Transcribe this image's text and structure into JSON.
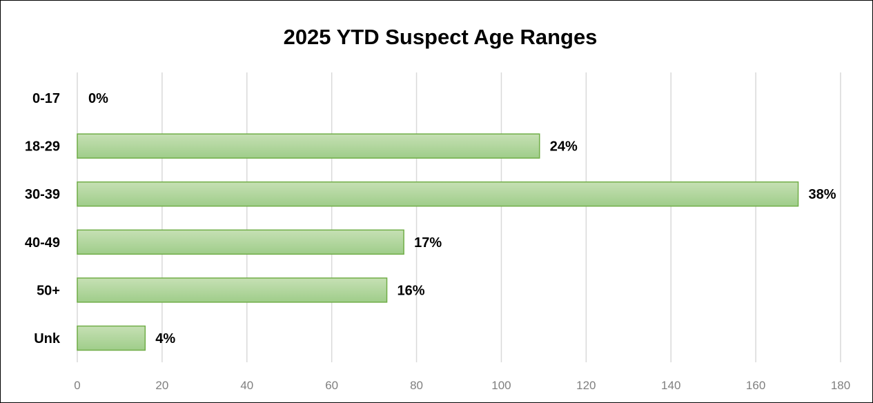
{
  "chart_data": {
    "type": "bar",
    "orientation": "horizontal",
    "title": "2025 YTD Suspect Age Ranges",
    "categories": [
      "0-17",
      "18-29",
      "30-39",
      "40-49",
      "50+",
      "Unk"
    ],
    "values": [
      0,
      109,
      170,
      77,
      73,
      16
    ],
    "data_labels": [
      "0%",
      "24%",
      "38%",
      "17%",
      "16%",
      "4%"
    ],
    "xlim": [
      0,
      180
    ],
    "x_ticks": [
      0,
      20,
      40,
      60,
      80,
      100,
      120,
      140,
      160,
      180
    ],
    "x_tick_labels": [
      "0",
      "20",
      "40",
      "60",
      "80",
      "100",
      "120",
      "140",
      "160",
      "180"
    ],
    "xlabel": "",
    "ylabel": "",
    "grid": "vertical",
    "legend": "none",
    "colors": {
      "bar_fill_light": "#c6e0b4",
      "bar_fill_dark": "#9fcd8a",
      "bar_stroke": "#70ad47",
      "grid": "#d9d9d9",
      "tick_text": "#7f7f7f",
      "text": "#000000"
    }
  }
}
